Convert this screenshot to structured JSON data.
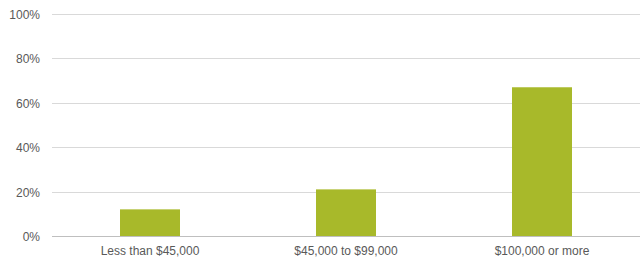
{
  "chart_data": {
    "type": "bar",
    "categories": [
      "Less than $45,000",
      "$45,000 to $99,000",
      "$100,000 or more"
    ],
    "values": [
      12,
      21,
      67
    ],
    "color": "#a8b92a",
    "ylim": [
      0,
      100
    ],
    "yticks": [
      {
        "value": 0,
        "label": "0%"
      },
      {
        "value": 20,
        "label": "20%"
      },
      {
        "value": 40,
        "label": "40%"
      },
      {
        "value": 60,
        "label": "60%"
      },
      {
        "value": 80,
        "label": "80%"
      },
      {
        "value": 100,
        "label": "100%"
      }
    ],
    "grid": true
  }
}
